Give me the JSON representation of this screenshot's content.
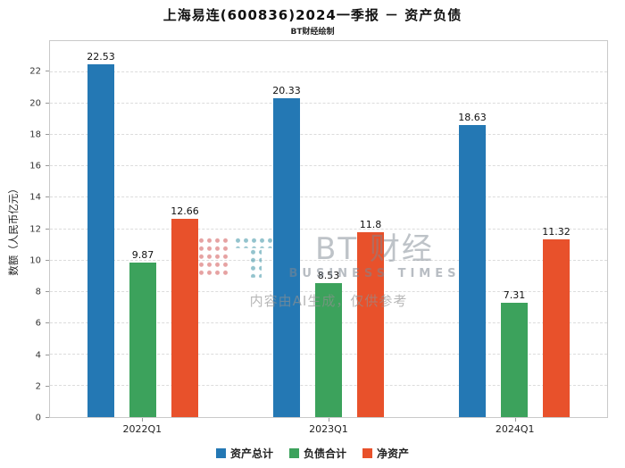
{
  "title": "上海易连(600836)2024一季报 － 资产负债",
  "subtitle": "BT财经绘制",
  "watermark": {
    "brand": "BT 财经",
    "brand_sub": "BUSINESS TIMES",
    "disclaimer": "内容由AI生成，仅供参考",
    "logo_b_icon_color": "#cd4646",
    "logo_t_icon_color": "#28879b"
  },
  "chart_data": {
    "type": "bar",
    "title": "上海易连(600836)2024一季报 － 资产负债",
    "subtitle": "BT财经绘制",
    "categories": [
      "2022Q1",
      "2023Q1",
      "2024Q1"
    ],
    "series": [
      {
        "name": "资产总计",
        "color": "#2478b4",
        "values": [
          22.53,
          20.33,
          18.63
        ]
      },
      {
        "name": "负债合计",
        "color": "#3ca25c",
        "values": [
          9.87,
          8.53,
          7.31
        ]
      },
      {
        "name": "净资产",
        "color": "#e8512b",
        "values": [
          12.66,
          11.8,
          11.32
        ]
      }
    ],
    "xlabel": "",
    "ylabel": "数额（人民币亿元）",
    "ylim": [
      0,
      24
    ],
    "yticks": [
      0,
      2,
      4,
      6,
      8,
      10,
      12,
      14,
      16,
      18,
      20,
      22
    ],
    "grid": "horizontal-dashed",
    "legend_position": "bottom"
  }
}
